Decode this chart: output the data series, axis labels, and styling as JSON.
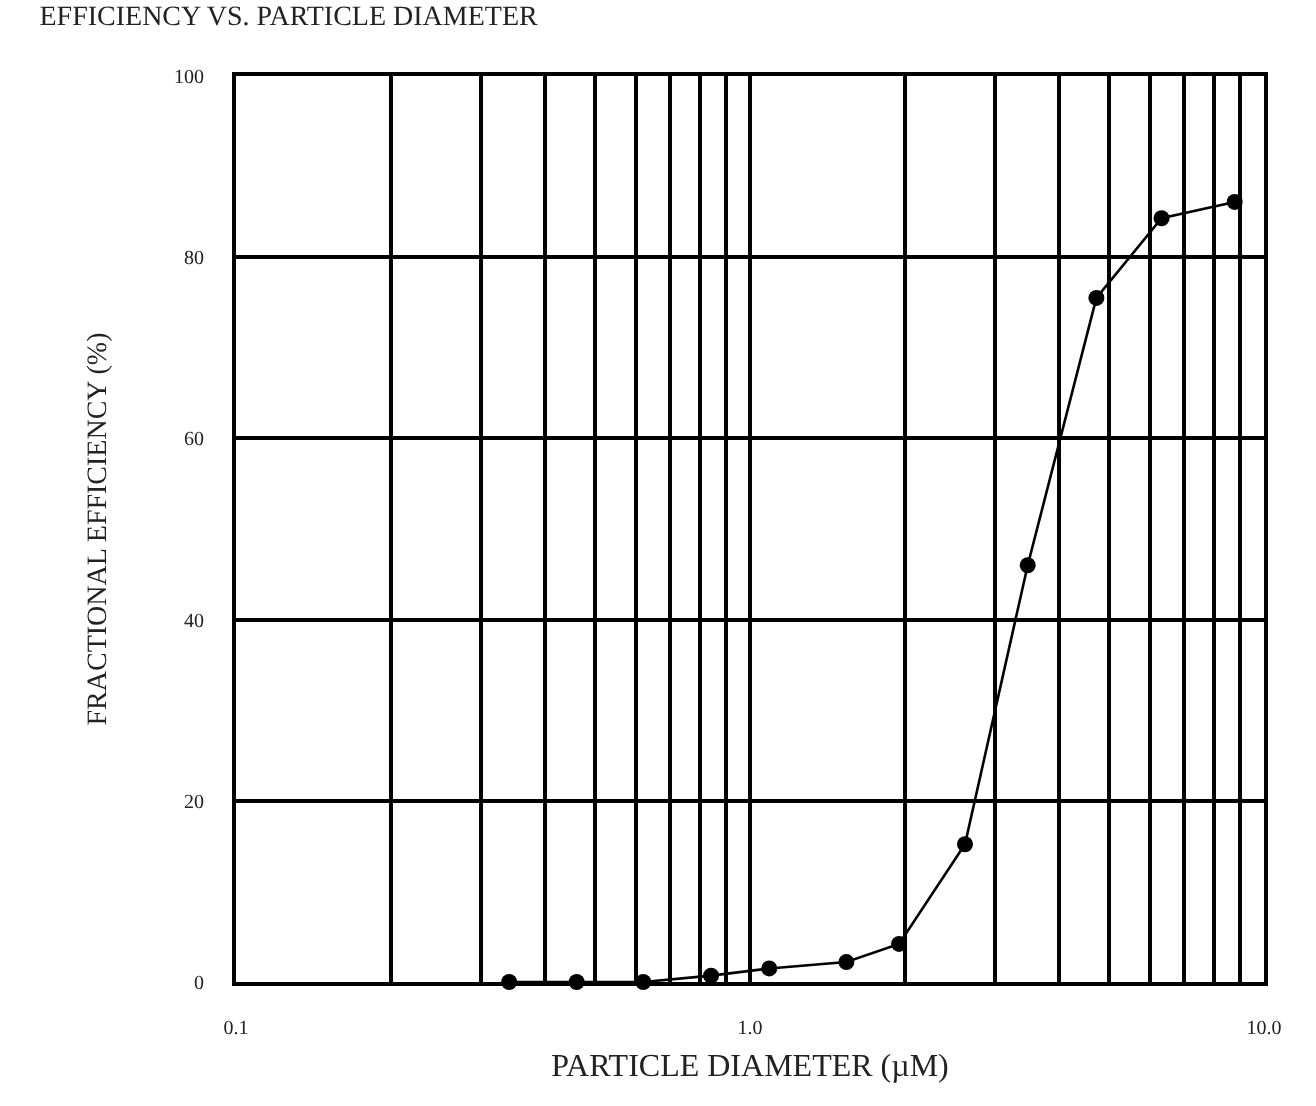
{
  "chart_data": {
    "type": "line",
    "title": "EFFICIENCY VS. PARTICLE DIAMETER",
    "xlabel": "PARTICLE DIAMETER (µM)",
    "ylabel": "FRACTIONAL EFFICIENCY (%)",
    "x": [
      0.34,
      0.46,
      0.62,
      0.84,
      1.09,
      1.54,
      1.95,
      2.62,
      3.47,
      4.72,
      6.32,
      8.77
    ],
    "series": [
      {
        "color": "#000000",
        "values": [
          0,
          0,
          0,
          0.7,
          1.5,
          2.2,
          4.2,
          15.2,
          46,
          75.5,
          84.3,
          86.1
        ]
      }
    ],
    "log": "x",
    "xlim": [
      0.1,
      10
    ],
    "xticks": [
      {
        "value": 0.1,
        "label": "0.1"
      },
      {
        "value": 1,
        "label": "1.0"
      },
      {
        "value": 10,
        "label": "10.0"
      }
    ],
    "ylim": [
      0,
      100
    ],
    "yticks": [
      0,
      20,
      40,
      60,
      80,
      100
    ],
    "grid": true,
    "marker": "circle",
    "line_style": "solid"
  }
}
